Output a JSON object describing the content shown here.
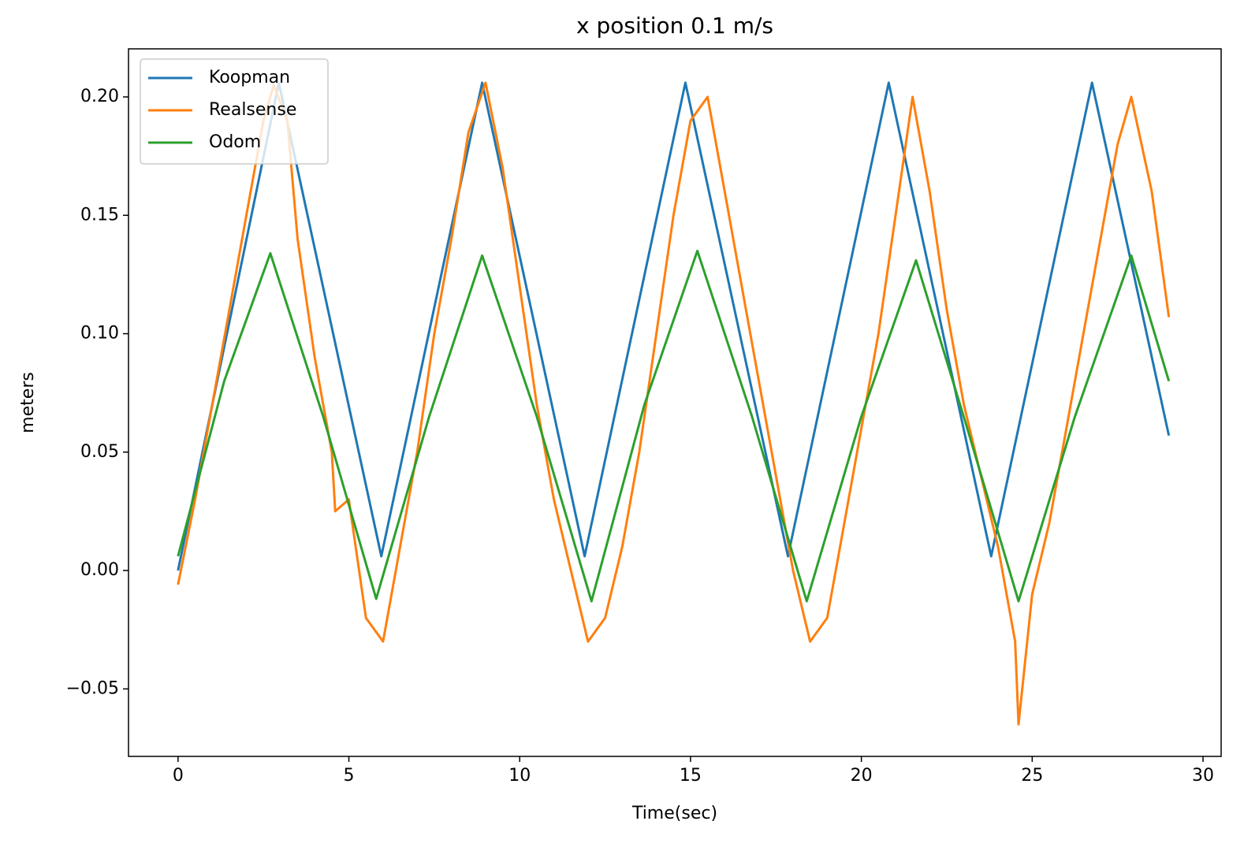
{
  "chart_data": {
    "type": "line",
    "title": "x position 0.1 m/s",
    "xlabel": "Time(sec)",
    "ylabel": "meters",
    "xlim": [
      -1.45,
      30.53
    ],
    "ylim": [
      -0.0785,
      0.2203
    ],
    "xticks": [
      0,
      5,
      10,
      15,
      20,
      25,
      30
    ],
    "yticks": [
      {
        "value": -0.05,
        "label": "−0.05"
      },
      {
        "value": 0,
        "label": "0.00"
      },
      {
        "value": 0.05,
        "label": "0.05"
      },
      {
        "value": 0.1,
        "label": "0.10"
      },
      {
        "value": 0.15,
        "label": "0.15"
      },
      {
        "value": 0.2,
        "label": "0.20"
      }
    ],
    "legend": "upper left",
    "series": [
      {
        "name": "Koopman",
        "color": "#1f77b4",
        "x": [
          0,
          2.95,
          5.95,
          8.9,
          11.9,
          14.85,
          17.85,
          20.8,
          23.8,
          26.75,
          29.0
        ],
        "values": [
          0,
          0.206,
          0.006,
          0.206,
          0.006,
          0.206,
          0.006,
          0.206,
          0.006,
          0.206,
          0.057
        ]
      },
      {
        "name": "Realsense",
        "color": "#ff7f0e",
        "x": [
          0,
          0.5,
          1,
          1.5,
          2,
          2.5,
          2.8,
          3.2,
          3.5,
          4,
          4.5,
          4.6,
          5,
          5.5,
          6,
          6.5,
          7,
          7.5,
          8,
          8.5,
          9,
          9.5,
          10,
          10.5,
          11,
          11.5,
          12,
          12.5,
          13,
          13.5,
          14,
          14.5,
          15,
          15.5,
          16,
          16.5,
          17,
          17.5,
          18,
          18.5,
          19,
          19.5,
          20,
          20.5,
          21,
          21.5,
          22,
          22.5,
          23,
          23.5,
          24,
          24.5,
          24.6,
          25,
          25.5,
          26,
          26.5,
          27,
          27.5,
          27.9,
          28.5,
          29
        ],
        "values": [
          -0.006,
          0.03,
          0.07,
          0.11,
          0.15,
          0.19,
          0.205,
          0.19,
          0.14,
          0.09,
          0.05,
          0.025,
          0.03,
          -0.02,
          -0.03,
          0.01,
          0.05,
          0.1,
          0.14,
          0.185,
          0.206,
          0.17,
          0.12,
          0.07,
          0.03,
          0.0,
          -0.03,
          -0.02,
          0.01,
          0.05,
          0.1,
          0.15,
          0.19,
          0.2,
          0.16,
          0.12,
          0.08,
          0.04,
          0.0,
          -0.03,
          -0.02,
          0.02,
          0.06,
          0.1,
          0.15,
          0.2,
          0.16,
          0.11,
          0.07,
          0.04,
          0.01,
          -0.03,
          -0.065,
          -0.01,
          0.02,
          0.06,
          0.1,
          0.14,
          0.18,
          0.2,
          0.16,
          0.107
        ]
      },
      {
        "name": "Odom",
        "color": "#2ca02c",
        "x": [
          0,
          1.35,
          2.7,
          4.25,
          5.8,
          7.35,
          8.9,
          10.5,
          12.1,
          13.65,
          15.2,
          16.8,
          18.4,
          20.0,
          21.6,
          23.1,
          24.6,
          26.25,
          27.9,
          29
        ],
        "values": [
          0.006,
          0.08,
          0.134,
          0.065,
          -0.012,
          0.065,
          0.133,
          0.065,
          -0.013,
          0.07,
          0.135,
          0.065,
          -0.013,
          0.065,
          0.131,
          0.06,
          -0.013,
          0.065,
          0.133,
          0.08
        ]
      }
    ]
  }
}
